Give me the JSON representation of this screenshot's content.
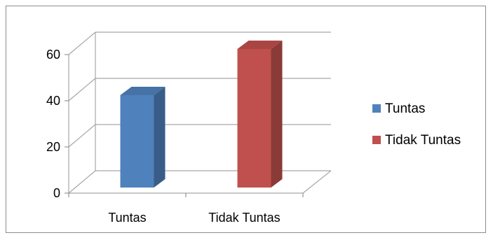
{
  "chart_data": {
    "type": "bar",
    "categories": [
      "Tuntas",
      "Tidak Tuntas"
    ],
    "series": [
      {
        "name": "Tuntas",
        "values": [
          40,
          null
        ],
        "color": "#4f81bd"
      },
      {
        "name": "Tidak Tuntas",
        "values": [
          null,
          60
        ],
        "color": "#c0504d"
      }
    ],
    "ylim": [
      0,
      60
    ],
    "yticks": [
      "0",
      "20",
      "40",
      "60"
    ],
    "grid": true,
    "legend": "right",
    "style": "3d-column"
  }
}
